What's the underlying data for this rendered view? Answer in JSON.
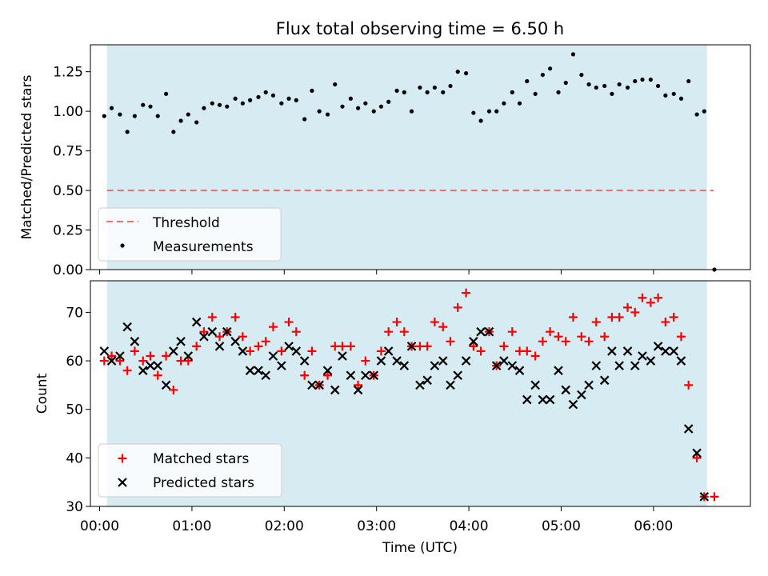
{
  "figure": {
    "title": "Flux total observing time = 6.50 h",
    "xlabel": "Time (UTC)"
  },
  "chart_data": [
    {
      "type": "scatter",
      "ylabel": "Matched/Predicted stars",
      "xlim": [
        -0.1,
        7.05
      ],
      "ylim": [
        0,
        1.42
      ],
      "yticks": [
        0.0,
        0.25,
        0.5,
        0.75,
        1.0,
        1.25
      ],
      "ytick_labels": [
        "0.00",
        "0.25",
        "0.50",
        "0.75",
        "1.00",
        "1.25"
      ],
      "observing_span": [
        0.08,
        6.58
      ],
      "legend_position": "lower-left",
      "threshold": {
        "name": "Threshold",
        "value": 0.5,
        "x_range": [
          0.08,
          6.65
        ],
        "color": "#f07070"
      },
      "measurements": {
        "name": "Measurements",
        "color": "#000000",
        "x": [
          0.05,
          0.13,
          0.22,
          0.3,
          0.38,
          0.47,
          0.55,
          0.63,
          0.72,
          0.8,
          0.88,
          0.96,
          1.05,
          1.13,
          1.22,
          1.3,
          1.38,
          1.47,
          1.55,
          1.63,
          1.72,
          1.8,
          1.88,
          1.97,
          2.05,
          2.13,
          2.22,
          2.3,
          2.38,
          2.47,
          2.55,
          2.63,
          2.72,
          2.8,
          2.88,
          2.97,
          3.05,
          3.13,
          3.22,
          3.3,
          3.38,
          3.47,
          3.55,
          3.63,
          3.72,
          3.8,
          3.88,
          3.97,
          4.05,
          4.13,
          4.22,
          4.3,
          4.38,
          4.47,
          4.55,
          4.63,
          4.72,
          4.8,
          4.88,
          4.97,
          5.05,
          5.13,
          5.22,
          5.3,
          5.38,
          5.47,
          5.55,
          5.63,
          5.72,
          5.8,
          5.88,
          5.97,
          6.05,
          6.13,
          6.22,
          6.3,
          6.38,
          6.47,
          6.55,
          6.66
        ],
        "y": [
          0.97,
          1.02,
          0.98,
          0.87,
          0.97,
          1.04,
          1.03,
          0.97,
          1.11,
          0.87,
          0.94,
          0.98,
          0.93,
          1.02,
          1.05,
          1.04,
          1.03,
          1.08,
          1.05,
          1.07,
          1.09,
          1.12,
          1.1,
          1.05,
          1.08,
          1.07,
          0.95,
          1.13,
          1.0,
          0.98,
          1.17,
          1.03,
          1.08,
          1.02,
          1.05,
          1.0,
          1.03,
          1.06,
          1.13,
          1.12,
          1.0,
          1.15,
          1.12,
          1.15,
          1.12,
          1.16,
          1.25,
          1.24,
          0.99,
          0.94,
          1.0,
          1.0,
          1.05,
          1.12,
          1.05,
          1.19,
          1.11,
          1.23,
          1.27,
          1.12,
          1.18,
          1.36,
          1.23,
          1.17,
          1.15,
          1.16,
          1.11,
          1.17,
          1.15,
          1.19,
          1.2,
          1.2,
          1.16,
          1.1,
          1.11,
          1.08,
          1.19,
          0.98,
          1.0,
          0.0
        ]
      }
    },
    {
      "type": "scatter",
      "ylabel": "Count",
      "xlim": [
        -0.1,
        7.05
      ],
      "ylim": [
        30,
        76.5
      ],
      "yticks": [
        30,
        40,
        50,
        60,
        70
      ],
      "ytick_labels": [
        "30",
        "40",
        "50",
        "60",
        "70"
      ],
      "xticks": [
        0,
        1,
        2,
        3,
        4,
        5,
        6
      ],
      "xtick_labels": [
        "00:00",
        "01:00",
        "02:00",
        "03:00",
        "04:00",
        "05:00",
        "06:00"
      ],
      "observing_span": [
        0.08,
        6.58
      ],
      "legend_position": "lower-left",
      "series": [
        {
          "name": "Matched stars",
          "marker": "plus",
          "color": "#ff0000",
          "x": [
            0.05,
            0.13,
            0.22,
            0.3,
            0.38,
            0.47,
            0.55,
            0.63,
            0.72,
            0.8,
            0.88,
            0.96,
            1.05,
            1.13,
            1.22,
            1.3,
            1.38,
            1.47,
            1.55,
            1.63,
            1.72,
            1.8,
            1.88,
            1.97,
            2.05,
            2.13,
            2.22,
            2.3,
            2.38,
            2.47,
            2.55,
            2.63,
            2.72,
            2.8,
            2.88,
            2.97,
            3.05,
            3.13,
            3.22,
            3.3,
            3.38,
            3.47,
            3.55,
            3.63,
            3.72,
            3.8,
            3.88,
            3.97,
            4.05,
            4.13,
            4.22,
            4.3,
            4.38,
            4.47,
            4.55,
            4.63,
            4.72,
            4.8,
            4.88,
            4.97,
            5.05,
            5.13,
            5.22,
            5.3,
            5.38,
            5.47,
            5.55,
            5.63,
            5.72,
            5.8,
            5.88,
            5.97,
            6.05,
            6.13,
            6.22,
            6.3,
            6.38,
            6.47,
            6.55,
            6.66
          ],
          "y": [
            60,
            61,
            60,
            58,
            62,
            60,
            61,
            57,
            61,
            54,
            60,
            60,
            63,
            66,
            69,
            65,
            66,
            69,
            65,
            62,
            63,
            64,
            67,
            62,
            68,
            66,
            57,
            62,
            55,
            57,
            63,
            63,
            63,
            55,
            60,
            57,
            62,
            66,
            68,
            66,
            63,
            63,
            63,
            68,
            67,
            64,
            71,
            74,
            63,
            62,
            66,
            59,
            63,
            66,
            62,
            62,
            61,
            64,
            66,
            65,
            64,
            69,
            65,
            64,
            68,
            65,
            69,
            69,
            71,
            70,
            73,
            72,
            73,
            68,
            69,
            65,
            55,
            40,
            32,
            32
          ]
        },
        {
          "name": "Predicted stars",
          "marker": "x",
          "color": "#000000",
          "x": [
            0.05,
            0.13,
            0.22,
            0.3,
            0.38,
            0.47,
            0.55,
            0.63,
            0.72,
            0.8,
            0.88,
            0.96,
            1.05,
            1.13,
            1.22,
            1.3,
            1.38,
            1.47,
            1.55,
            1.63,
            1.72,
            1.8,
            1.88,
            1.97,
            2.05,
            2.13,
            2.22,
            2.3,
            2.38,
            2.47,
            2.55,
            2.63,
            2.72,
            2.8,
            2.88,
            2.97,
            3.05,
            3.13,
            3.22,
            3.3,
            3.38,
            3.47,
            3.55,
            3.63,
            3.72,
            3.8,
            3.88,
            3.97,
            4.05,
            4.13,
            4.22,
            4.3,
            4.38,
            4.47,
            4.55,
            4.63,
            4.72,
            4.8,
            4.88,
            4.97,
            5.05,
            5.13,
            5.22,
            5.3,
            5.38,
            5.47,
            5.55,
            5.63,
            5.72,
            5.8,
            5.88,
            5.97,
            6.05,
            6.13,
            6.22,
            6.3,
            6.38,
            6.47,
            6.55
          ],
          "y": [
            62,
            60,
            61,
            67,
            64,
            58,
            59,
            59,
            55,
            62,
            64,
            61,
            68,
            65,
            66,
            63,
            66,
            64,
            62,
            58,
            58,
            57,
            61,
            59,
            63,
            62,
            60,
            55,
            55,
            58,
            54,
            61,
            57,
            54,
            57,
            57,
            60,
            62,
            60,
            59,
            63,
            55,
            56,
            59,
            60,
            55,
            57,
            60,
            64,
            66,
            66,
            59,
            60,
            59,
            58,
            52,
            55,
            52,
            52,
            58,
            54,
            51,
            53,
            55,
            59,
            56,
            62,
            59,
            62,
            59,
            61,
            60,
            63,
            62,
            62,
            60,
            46,
            41,
            32
          ]
        }
      ]
    }
  ]
}
